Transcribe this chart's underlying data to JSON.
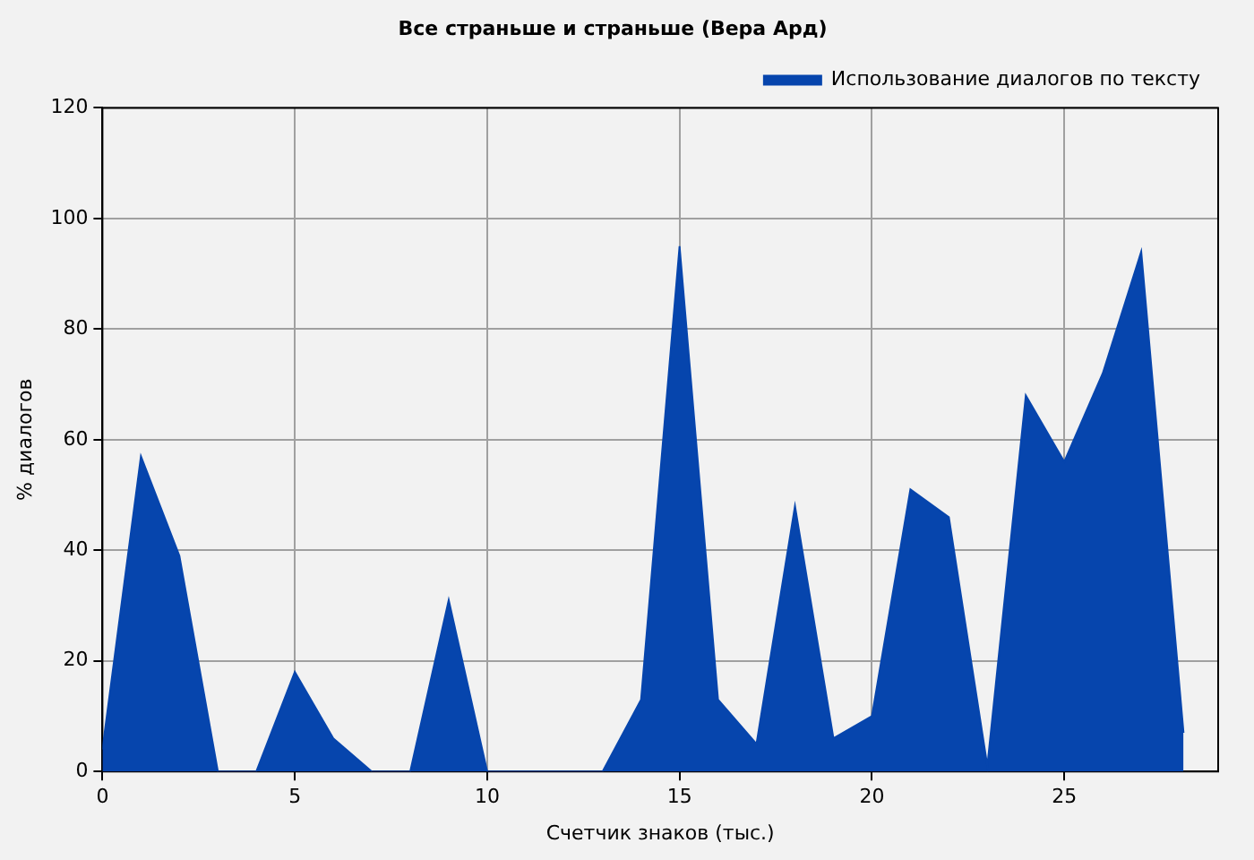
{
  "chart_data": {
    "type": "area",
    "title": "Все страньше и страньше (Вера Ард)",
    "xlabel": "Счетчик знаков (тыс.)",
    "ylabel": "% диалогов",
    "x": [
      0,
      1,
      2,
      3,
      4,
      5,
      6,
      7,
      8,
      9,
      10,
      11,
      12,
      13,
      14,
      15,
      16,
      17,
      18,
      19,
      20,
      21,
      22,
      23,
      24,
      25,
      26,
      27,
      28.1
    ],
    "series": [
      {
        "name": "Использование диалогов по тексту",
        "color": "#0645ad",
        "values": [
          4,
          57,
          39,
          0,
          0,
          18,
          6,
          0,
          0,
          31,
          0,
          0,
          0,
          0,
          13,
          95,
          13,
          5,
          48,
          6,
          10,
          51,
          46,
          1,
          68,
          56,
          72,
          94,
          7
        ]
      }
    ],
    "xlim": [
      0,
      29
    ],
    "xticks": [
      0,
      5,
      10,
      15,
      20,
      25
    ],
    "ylim": [
      0,
      120
    ],
    "yticks": [
      0,
      20,
      40,
      60,
      80,
      100,
      120
    ],
    "grid": true,
    "legend": "top right"
  }
}
